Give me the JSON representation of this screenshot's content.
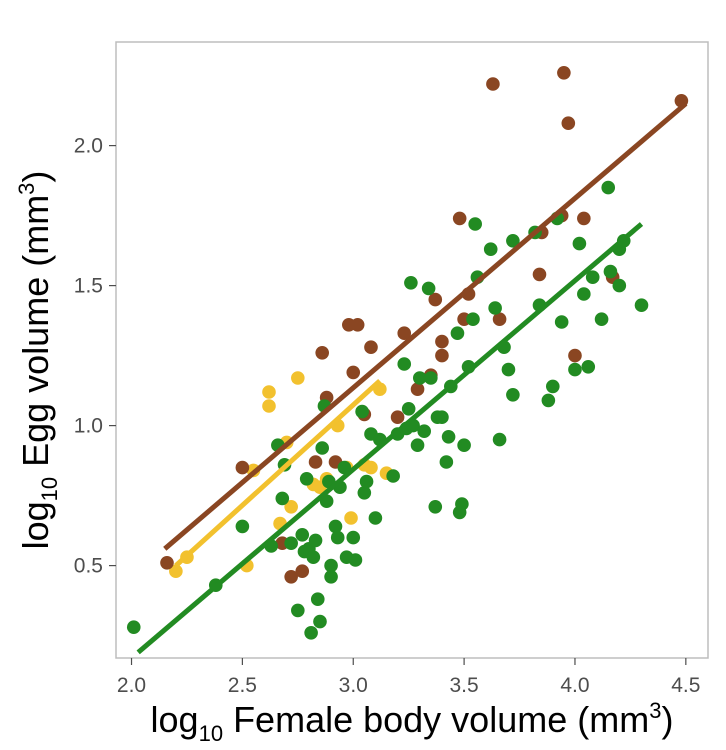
{
  "chart_data": {
    "type": "scatter",
    "xlabel": {
      "prefix": "log",
      "subscript": "10",
      "text": " Female body volume (mm",
      "superscript": "3",
      "suffix": ")"
    },
    "ylabel": {
      "prefix": "log",
      "subscript": "10",
      "text": " Egg volume (mm",
      "superscript": "3",
      "suffix": ")"
    },
    "xlim": [
      1.93,
      4.6
    ],
    "ylim": [
      0.17,
      2.37
    ],
    "x_ticks": [
      "2.0",
      "2.5",
      "3.0",
      "3.5",
      "4.0",
      "4.5"
    ],
    "y_ticks": [
      "0.5",
      "1.0",
      "1.5",
      "2.0"
    ],
    "grid": false,
    "series": [
      {
        "color": "#f2c12e",
        "points": [
          [
            2.2,
            0.48
          ],
          [
            2.25,
            0.53
          ],
          [
            2.52,
            0.5
          ],
          [
            2.55,
            0.84
          ],
          [
            2.62,
            1.12
          ],
          [
            2.62,
            1.07
          ],
          [
            2.67,
            0.65
          ],
          [
            2.7,
            0.94
          ],
          [
            2.72,
            0.71
          ],
          [
            2.75,
            1.17
          ],
          [
            2.82,
            0.79
          ],
          [
            2.85,
            0.78
          ],
          [
            2.88,
            0.81
          ],
          [
            2.93,
            1.0
          ],
          [
            2.97,
            0.85
          ],
          [
            2.99,
            0.67
          ],
          [
            3.05,
            0.86
          ],
          [
            3.08,
            0.85
          ],
          [
            3.12,
            1.13
          ],
          [
            3.15,
            0.83
          ]
        ],
        "fit": [
          [
            2.2,
            0.5
          ],
          [
            3.12,
            1.16
          ]
        ]
      },
      {
        "color": "#8a4622",
        "points": [
          [
            2.16,
            0.51
          ],
          [
            2.5,
            0.85
          ],
          [
            2.68,
            0.58
          ],
          [
            2.72,
            0.46
          ],
          [
            2.77,
            0.48
          ],
          [
            2.83,
            0.87
          ],
          [
            2.86,
            1.26
          ],
          [
            2.88,
            1.1
          ],
          [
            2.92,
            0.87
          ],
          [
            2.98,
            1.36
          ],
          [
            3.0,
            1.19
          ],
          [
            3.02,
            1.36
          ],
          [
            3.05,
            1.04
          ],
          [
            3.08,
            1.28
          ],
          [
            3.2,
            1.03
          ],
          [
            3.23,
            1.33
          ],
          [
            3.29,
            1.13
          ],
          [
            3.35,
            1.18
          ],
          [
            3.37,
            1.45
          ],
          [
            3.4,
            1.3
          ],
          [
            3.4,
            1.25
          ],
          [
            3.48,
            1.74
          ],
          [
            3.5,
            1.38
          ],
          [
            3.52,
            1.47
          ],
          [
            3.63,
            2.22
          ],
          [
            3.66,
            1.38
          ],
          [
            3.84,
            1.54
          ],
          [
            3.85,
            1.69
          ],
          [
            3.94,
            1.75
          ],
          [
            3.95,
            2.26
          ],
          [
            3.97,
            2.08
          ],
          [
            4.0,
            1.25
          ],
          [
            4.04,
            1.74
          ],
          [
            4.17,
            1.53
          ],
          [
            4.48,
            2.16
          ]
        ],
        "fit": [
          [
            2.15,
            0.56
          ],
          [
            4.5,
            2.15
          ]
        ]
      },
      {
        "color": "#228b22",
        "points": [
          [
            2.01,
            0.28
          ],
          [
            2.38,
            0.43
          ],
          [
            2.5,
            0.64
          ],
          [
            2.63,
            0.57
          ],
          [
            2.66,
            0.93
          ],
          [
            2.68,
            0.74
          ],
          [
            2.69,
            0.86
          ],
          [
            2.72,
            0.58
          ],
          [
            2.75,
            0.34
          ],
          [
            2.77,
            0.61
          ],
          [
            2.78,
            0.55
          ],
          [
            2.79,
            0.81
          ],
          [
            2.8,
            0.56
          ],
          [
            2.81,
            0.26
          ],
          [
            2.82,
            0.53
          ],
          [
            2.83,
            0.59
          ],
          [
            2.84,
            0.38
          ],
          [
            2.85,
            0.3
          ],
          [
            2.86,
            0.92
          ],
          [
            2.87,
            1.07
          ],
          [
            2.88,
            0.73
          ],
          [
            2.89,
            0.8
          ],
          [
            2.9,
            0.5
          ],
          [
            2.9,
            0.46
          ],
          [
            2.92,
            0.64
          ],
          [
            2.93,
            0.6
          ],
          [
            2.94,
            0.78
          ],
          [
            2.96,
            0.85
          ],
          [
            2.97,
            0.53
          ],
          [
            3.0,
            0.6
          ],
          [
            3.01,
            0.52
          ],
          [
            3.04,
            1.05
          ],
          [
            3.05,
            0.76
          ],
          [
            3.06,
            0.8
          ],
          [
            3.08,
            0.97
          ],
          [
            3.1,
            0.67
          ],
          [
            3.12,
            0.95
          ],
          [
            3.18,
            0.82
          ],
          [
            3.2,
            0.97
          ],
          [
            3.23,
            1.22
          ],
          [
            3.24,
            0.99
          ],
          [
            3.25,
            1.06
          ],
          [
            3.26,
            1.51
          ],
          [
            3.27,
            1.0
          ],
          [
            3.29,
            0.93
          ],
          [
            3.3,
            1.17
          ],
          [
            3.32,
            0.98
          ],
          [
            3.34,
            1.49
          ],
          [
            3.35,
            1.17
          ],
          [
            3.37,
            0.71
          ],
          [
            3.38,
            1.03
          ],
          [
            3.4,
            1.03
          ],
          [
            3.42,
            0.87
          ],
          [
            3.43,
            0.96
          ],
          [
            3.44,
            1.14
          ],
          [
            3.47,
            1.33
          ],
          [
            3.48,
            0.69
          ],
          [
            3.49,
            0.72
          ],
          [
            3.5,
            0.93
          ],
          [
            3.52,
            1.21
          ],
          [
            3.54,
            1.38
          ],
          [
            3.55,
            1.72
          ],
          [
            3.56,
            1.53
          ],
          [
            3.62,
            1.63
          ],
          [
            3.64,
            1.42
          ],
          [
            3.66,
            0.95
          ],
          [
            3.68,
            1.28
          ],
          [
            3.7,
            1.2
          ],
          [
            3.72,
            1.11
          ],
          [
            3.72,
            1.66
          ],
          [
            3.82,
            1.69
          ],
          [
            3.84,
            1.43
          ],
          [
            3.88,
            1.09
          ],
          [
            3.9,
            1.14
          ],
          [
            3.92,
            1.74
          ],
          [
            3.94,
            1.37
          ],
          [
            4.0,
            1.2
          ],
          [
            4.02,
            1.65
          ],
          [
            4.04,
            1.47
          ],
          [
            4.06,
            1.21
          ],
          [
            4.08,
            1.53
          ],
          [
            4.12,
            1.38
          ],
          [
            4.15,
            1.85
          ],
          [
            4.16,
            1.55
          ],
          [
            4.2,
            1.5
          ],
          [
            4.2,
            1.63
          ],
          [
            4.22,
            1.66
          ],
          [
            4.3,
            1.43
          ]
        ],
        "fit": [
          [
            2.03,
            0.19
          ],
          [
            4.3,
            1.72
          ]
        ]
      }
    ]
  }
}
